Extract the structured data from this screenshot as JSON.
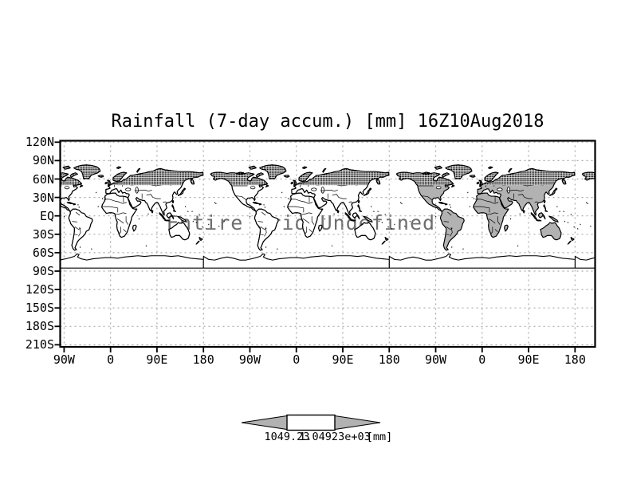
{
  "figure": {
    "title": "Rainfall (7-day accum.) [mm] 16Z10Aug2018",
    "overlay_message": "Entire Grid Undefined"
  },
  "axes": {
    "y_tick_labels": [
      "120N",
      "90N",
      "60N",
      "30N",
      "EQ",
      "30S",
      "60S",
      "90S",
      "120S",
      "150S",
      "180S",
      "210S"
    ],
    "x_tick_labels": [
      "90W",
      "0",
      "90E",
      "180",
      "90W",
      "0",
      "90E",
      "180",
      "90W",
      "0",
      "90E",
      "180"
    ]
  },
  "colorbar": {
    "left_label": "1049.23",
    "right_label": "1.04923e+03",
    "units_label": "[mm]",
    "fill_color": "#b2b2b2"
  },
  "colors": {
    "background": "#ffffff",
    "frame": "#000000",
    "grid": "#aaaaaa",
    "coastline": "#000000",
    "land_fill": "#ffffff",
    "land_fill_shaded": "#b2b2b2",
    "overlay_text": "#6e6e6e"
  },
  "chart_data": {
    "type": "heatmap",
    "title": "Rainfall (7-day accum.) [mm] 16Z10Aug2018",
    "variable": "Rainfall (7-day accum.)",
    "units": "mm",
    "valid_time": "16Z10Aug2018",
    "x_tick_labels": [
      "90W",
      "0",
      "90E",
      "180",
      "90W",
      "0",
      "90E",
      "180",
      "90W",
      "0",
      "90E",
      "180"
    ],
    "y_tick_labels": [
      "120N",
      "90N",
      "60N",
      "30N",
      "EQ",
      "30S",
      "60S",
      "90S",
      "120S",
      "150S",
      "180S",
      "210S"
    ],
    "values": null,
    "data_status": "Entire Grid Undefined",
    "colorbar_labels": [
      "1049.23",
      "1.04923e+03"
    ],
    "colorbar_units": "[mm]",
    "grid": true,
    "legend_position": "bottom",
    "notes": "World coastline map repeated three times along longitude axis; rainfall grid undefined so no shaded data values are plotted."
  }
}
